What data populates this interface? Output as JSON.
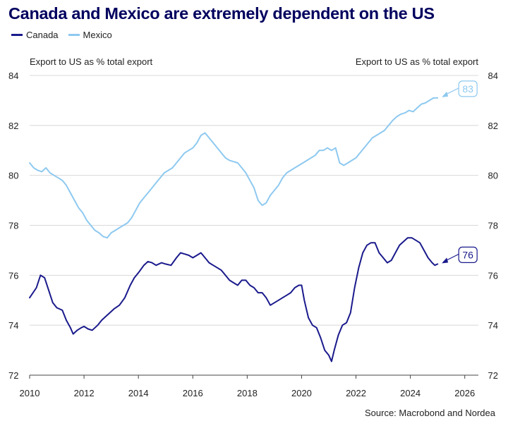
{
  "title": "Canada and Mexico are extremely dependent on the US",
  "source": "Source: Macrobond and Nordea",
  "colors": {
    "canada": "#1a1a8c",
    "mexico": "#8ec9f0",
    "title": "#00005e",
    "grid": "#d8d8d8"
  },
  "chart_data": {
    "type": "line",
    "title": "Canada and Mexico are extremely dependent on the US",
    "ylabel_left": "Export to US as % total export",
    "ylabel_right": "Export to US as % total export",
    "xlim": [
      2010,
      2026.5
    ],
    "ylim": [
      72,
      84
    ],
    "x_ticks": [
      "2010",
      "2012",
      "2014",
      "2016",
      "2018",
      "2020",
      "2022",
      "2024",
      "2026"
    ],
    "y_ticks": [
      "72",
      "74",
      "76",
      "78",
      "80",
      "82",
      "84"
    ],
    "grid": "horizontal",
    "legend_position": "top-left",
    "series": [
      {
        "name": "Canada",
        "x": [
          2010.0,
          2010.25,
          2010.4,
          2010.55,
          2010.7,
          2010.85,
          2011.0,
          2011.2,
          2011.35,
          2011.5,
          2011.6,
          2011.75,
          2011.9,
          2012.0,
          2012.15,
          2012.3,
          2012.5,
          2012.65,
          2012.8,
          2012.95,
          2013.1,
          2013.3,
          2013.5,
          2013.7,
          2013.85,
          2014.0,
          2014.2,
          2014.35,
          2014.5,
          2014.65,
          2014.85,
          2015.0,
          2015.2,
          2015.4,
          2015.55,
          2015.7,
          2015.85,
          2016.0,
          2016.15,
          2016.3,
          2016.45,
          2016.6,
          2016.75,
          2016.9,
          2017.05,
          2017.2,
          2017.35,
          2017.5,
          2017.65,
          2017.8,
          2017.95,
          2018.1,
          2018.25,
          2018.4,
          2018.55,
          2018.7,
          2018.85,
          2019.0,
          2019.15,
          2019.3,
          2019.45,
          2019.6,
          2019.75,
          2019.9,
          2020.0,
          2020.1,
          2020.25,
          2020.4,
          2020.55,
          2020.7,
          2020.85,
          2021.0,
          2021.1,
          2021.2,
          2021.35,
          2021.5,
          2021.65,
          2021.8,
          2021.95,
          2022.1,
          2022.25,
          2022.4,
          2022.55,
          2022.7,
          2022.85,
          2023.0,
          2023.15,
          2023.3,
          2023.45,
          2023.6,
          2023.75,
          2023.9,
          2024.05,
          2024.2,
          2024.35,
          2024.5,
          2024.65,
          2024.8,
          2024.9,
          2025.0
        ],
        "values": [
          75.1,
          75.5,
          76.0,
          75.9,
          75.4,
          74.9,
          74.7,
          74.6,
          74.2,
          73.9,
          73.65,
          73.8,
          73.9,
          73.95,
          73.85,
          73.8,
          74.0,
          74.2,
          74.35,
          74.5,
          74.65,
          74.8,
          75.1,
          75.6,
          75.9,
          76.1,
          76.4,
          76.55,
          76.5,
          76.4,
          76.5,
          76.45,
          76.4,
          76.7,
          76.9,
          76.85,
          76.8,
          76.7,
          76.8,
          76.9,
          76.7,
          76.5,
          76.4,
          76.3,
          76.2,
          76.0,
          75.8,
          75.7,
          75.6,
          75.8,
          75.8,
          75.6,
          75.5,
          75.3,
          75.3,
          75.1,
          74.8,
          74.9,
          75.0,
          75.1,
          75.2,
          75.3,
          75.5,
          75.6,
          75.6,
          75.0,
          74.3,
          74.0,
          73.9,
          73.5,
          73.0,
          72.8,
          72.55,
          73.0,
          73.6,
          74.0,
          74.1,
          74.5,
          75.5,
          76.3,
          76.9,
          77.2,
          77.3,
          77.3,
          76.9,
          76.7,
          76.5,
          76.6,
          76.9,
          77.2,
          77.35,
          77.5,
          77.5,
          77.4,
          77.3,
          77.0,
          76.7,
          76.5,
          76.4,
          76.45
        ]
      },
      {
        "name": "Mexico",
        "x": [
          2010.0,
          2010.15,
          2010.3,
          2010.45,
          2010.6,
          2010.75,
          2010.9,
          2011.05,
          2011.2,
          2011.35,
          2011.5,
          2011.65,
          2011.8,
          2011.95,
          2012.1,
          2012.25,
          2012.4,
          2012.55,
          2012.7,
          2012.85,
          2013.0,
          2013.15,
          2013.3,
          2013.45,
          2013.6,
          2013.75,
          2013.9,
          2014.05,
          2014.2,
          2014.35,
          2014.5,
          2014.65,
          2014.8,
          2014.95,
          2015.1,
          2015.25,
          2015.4,
          2015.55,
          2015.7,
          2015.85,
          2016.0,
          2016.15,
          2016.3,
          2016.45,
          2016.6,
          2016.75,
          2016.9,
          2017.05,
          2017.2,
          2017.35,
          2017.5,
          2017.65,
          2017.8,
          2017.95,
          2018.1,
          2018.25,
          2018.4,
          2018.55,
          2018.7,
          2018.85,
          2019.0,
          2019.15,
          2019.3,
          2019.45,
          2019.6,
          2019.75,
          2019.9,
          2020.05,
          2020.2,
          2020.35,
          2020.5,
          2020.65,
          2020.8,
          2020.95,
          2021.1,
          2021.25,
          2021.4,
          2021.55,
          2021.7,
          2021.85,
          2022.0,
          2022.15,
          2022.3,
          2022.45,
          2022.6,
          2022.75,
          2022.9,
          2023.05,
          2023.2,
          2023.35,
          2023.5,
          2023.65,
          2023.8,
          2023.95,
          2024.1,
          2024.25,
          2024.4,
          2024.55,
          2024.7,
          2024.85,
          2025.0
        ],
        "values": [
          80.5,
          80.3,
          80.2,
          80.15,
          80.3,
          80.1,
          80.0,
          79.9,
          79.8,
          79.6,
          79.3,
          79.0,
          78.7,
          78.5,
          78.2,
          78.0,
          77.8,
          77.7,
          77.55,
          77.5,
          77.7,
          77.8,
          77.9,
          78.0,
          78.1,
          78.3,
          78.6,
          78.9,
          79.1,
          79.3,
          79.5,
          79.7,
          79.9,
          80.1,
          80.2,
          80.3,
          80.5,
          80.7,
          80.9,
          81.0,
          81.1,
          81.3,
          81.6,
          81.7,
          81.5,
          81.3,
          81.1,
          80.9,
          80.7,
          80.6,
          80.55,
          80.5,
          80.3,
          80.1,
          79.8,
          79.5,
          79.0,
          78.8,
          78.9,
          79.2,
          79.4,
          79.6,
          79.9,
          80.1,
          80.2,
          80.3,
          80.4,
          80.5,
          80.6,
          80.7,
          80.8,
          81.0,
          81.0,
          81.1,
          81.0,
          81.1,
          80.5,
          80.4,
          80.5,
          80.6,
          80.7,
          80.9,
          81.1,
          81.3,
          81.5,
          81.6,
          81.7,
          81.8,
          82.0,
          82.2,
          82.35,
          82.45,
          82.5,
          82.6,
          82.55,
          82.7,
          82.85,
          82.9,
          83.0,
          83.1,
          83.1
        ]
      }
    ],
    "annotations": [
      {
        "series": "Mexico",
        "label": "83"
      },
      {
        "series": "Canada",
        "label": "76"
      }
    ]
  }
}
